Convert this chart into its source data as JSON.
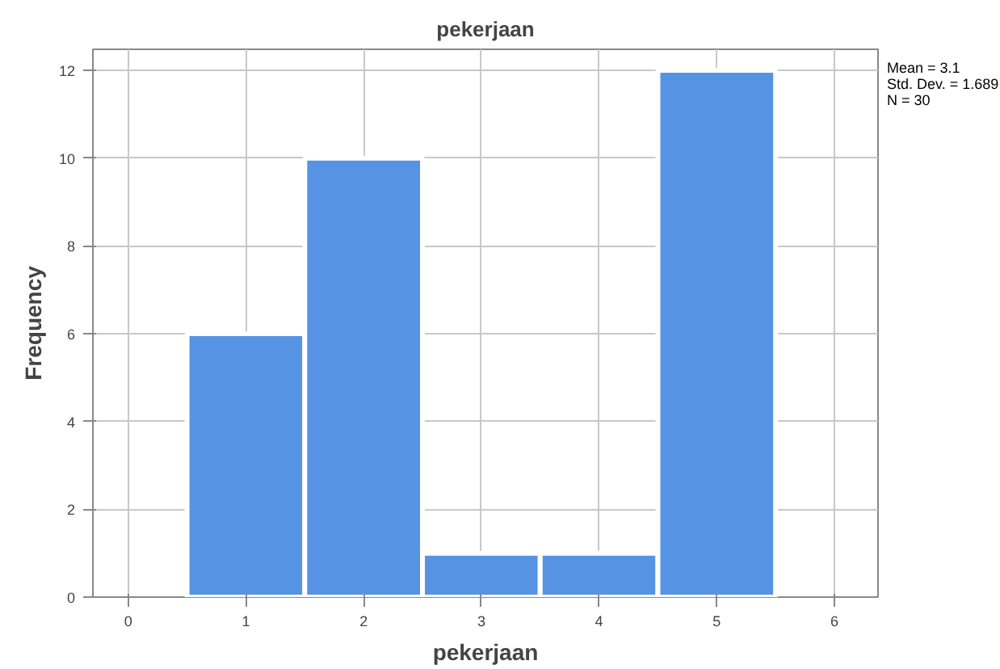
{
  "chart_data": {
    "type": "histogram",
    "title": "pekerjaan",
    "xlabel": "pekerjaan",
    "ylabel": "Frequency",
    "bins": [
      0.5,
      1.5,
      2.5,
      3.5,
      4.5,
      5.5
    ],
    "values": [
      6,
      10,
      1,
      1,
      12
    ],
    "color": "#5694e3",
    "xlim": [
      -0.3,
      6.37
    ],
    "xticks": [
      0,
      1,
      2,
      3,
      4,
      5,
      6
    ],
    "ylim": [
      0,
      12.48
    ],
    "yticks": [
      0,
      2,
      4,
      6,
      8,
      10,
      12
    ],
    "grid": true,
    "annotations": [
      "Mean = 3.1",
      "Std. Dev. = 1.689",
      "N = 30"
    ]
  }
}
